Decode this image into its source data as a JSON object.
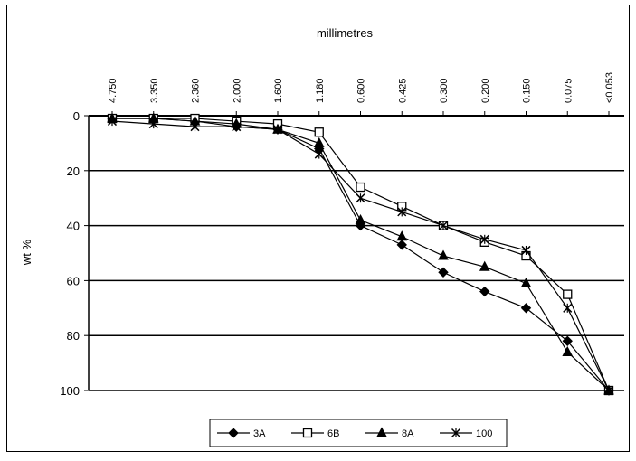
{
  "chart_data": {
    "type": "line",
    "title": "millimetres",
    "ylabel": "wt %",
    "xlabel": "",
    "ylim": [
      0,
      100
    ],
    "y_inverted": true,
    "y_ticks": [
      "0",
      "20",
      "40",
      "60",
      "80",
      "100"
    ],
    "categories": [
      "4.750",
      "3.350",
      "2.360",
      "2.000",
      "1.600",
      "1.180",
      "0.600",
      "0.425",
      "0.300",
      "0.200",
      "0.150",
      "0.075",
      "<0.053"
    ],
    "x_axis_position": "top",
    "grid": true,
    "legend_position": "bottom",
    "series": [
      {
        "name": "3A",
        "marker": "diamond",
        "values": [
          1,
          1,
          2,
          4,
          5,
          12,
          40,
          47,
          57,
          64,
          70,
          82,
          100
        ]
      },
      {
        "name": "6B",
        "marker": "square",
        "values": [
          1,
          1,
          1,
          2,
          3,
          6,
          26,
          33,
          40,
          46,
          51,
          65,
          100
        ]
      },
      {
        "name": "8A",
        "marker": "triangle",
        "values": [
          1,
          1,
          2,
          3,
          5,
          10,
          38,
          44,
          51,
          55,
          61,
          86,
          100
        ]
      },
      {
        "name": "100",
        "marker": "x",
        "values": [
          2,
          3,
          4,
          4,
          5,
          14,
          30,
          35,
          40,
          45,
          49,
          70,
          100
        ]
      }
    ]
  }
}
